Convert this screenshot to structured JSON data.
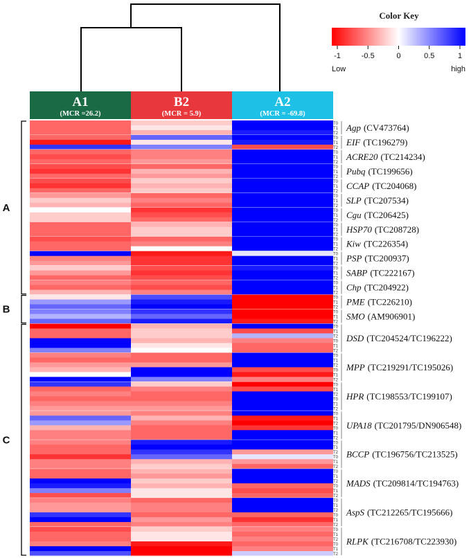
{
  "chart_data": {
    "type": "heatmap",
    "color_key": {
      "title": "Color Key",
      "ticks": [
        "-1",
        "-0.5",
        "0",
        "0.5",
        "1"
      ],
      "tick_values": [
        -1,
        -0.5,
        0,
        0.5,
        1
      ],
      "low_label": "Low",
      "high_label": "high",
      "low_color": "#ff0000",
      "mid_color": "#ffffff",
      "high_color": "#0000ff"
    },
    "columns": [
      {
        "label": "A1",
        "sublabel": "(MCR =26.2)",
        "color": "#1a6b45"
      },
      {
        "label": "B2",
        "sublabel": "(MCR = 5.9)",
        "color": "#e8383b"
      },
      {
        "label": "A2",
        "sublabel": "(MCR = -69.8)",
        "color": "#1ec0e6"
      }
    ],
    "row_labels": [
      "T0",
      "T1",
      "T2"
    ],
    "groups": [
      {
        "label": "A",
        "gene_start": 0,
        "gene_end": 11
      },
      {
        "label": "B",
        "gene_start": 12,
        "gene_end": 13
      },
      {
        "label": "C",
        "gene_start": 14,
        "gene_end": 21
      }
    ],
    "genes": [
      {
        "symbol": "Agp",
        "id": "(CV473764)",
        "rows": 3,
        "values": [
          [
            -0.6,
            -0.2,
            1
          ],
          [
            -0.6,
            -0.1,
            1
          ],
          [
            -0.6,
            -0.3,
            0.9
          ]
        ]
      },
      {
        "symbol": "EIF",
        "id": "(TC196279)",
        "rows": 3,
        "values": [
          [
            -0.6,
            0.6,
            1
          ],
          [
            -0.9,
            -0.1,
            0.9
          ],
          [
            0.8,
            0.5,
            -0.7
          ]
        ]
      },
      {
        "symbol": "ACRE20",
        "id": "(TC214234)",
        "rows": 3,
        "values": [
          [
            -0.6,
            -0.5,
            1
          ],
          [
            -0.7,
            -0.5,
            1
          ],
          [
            -0.6,
            -0.4,
            1
          ]
        ]
      },
      {
        "symbol": "Pubq",
        "id": "(TC199656)",
        "rows": 3,
        "values": [
          [
            -0.7,
            -0.6,
            1
          ],
          [
            -0.8,
            -0.3,
            1
          ],
          [
            -0.6,
            -0.4,
            1
          ]
        ]
      },
      {
        "symbol": "CCAP",
        "id": "(TC204068)",
        "rows": 3,
        "values": [
          [
            -0.7,
            -0.2,
            1
          ],
          [
            -0.8,
            -0.3,
            1
          ],
          [
            -0.6,
            -0.2,
            1
          ]
        ]
      },
      {
        "symbol": "SLP",
        "id": "(TC207534)",
        "rows": 3,
        "values": [
          [
            -0.4,
            -0.6,
            1
          ],
          [
            -0.2,
            -0.5,
            1
          ],
          [
            -0.3,
            -0.6,
            1
          ]
        ]
      },
      {
        "symbol": "Cgu",
        "id": "(TC206425)",
        "rows": 3,
        "values": [
          [
            0,
            -0.8,
            1
          ],
          [
            -0.2,
            -0.7,
            1
          ],
          [
            -0.2,
            -0.6,
            1
          ]
        ]
      },
      {
        "symbol": "HSP70",
        "id": "(TC208728)",
        "rows": 3,
        "values": [
          [
            -0.6,
            -0.3,
            1
          ],
          [
            -0.6,
            -0.2,
            1
          ],
          [
            -0.6,
            -0.2,
            1
          ]
        ]
      },
      {
        "symbol": "Kiw",
        "id": "(TC226354)",
        "rows": 3,
        "values": [
          [
            -0.7,
            -0.6,
            1
          ],
          [
            -0.6,
            -0.5,
            1
          ],
          [
            -0.6,
            0,
            1
          ]
        ]
      },
      {
        "symbol": "PSP",
        "id": "(TC200937)",
        "rows": 3,
        "values": [
          [
            1,
            -0.9,
            0.1
          ],
          [
            -0.5,
            -0.8,
            1
          ],
          [
            -0.4,
            -0.8,
            1
          ]
        ]
      },
      {
        "symbol": "SABP",
        "id": "(TC222167)",
        "rows": 3,
        "values": [
          [
            -0.2,
            -0.7,
            0.9
          ],
          [
            -0.4,
            -0.8,
            1
          ],
          [
            -0.6,
            -0.7,
            1
          ]
        ]
      },
      {
        "symbol": "Chp",
        "id": "(TC204922)",
        "rows": 3,
        "values": [
          [
            -0.5,
            -0.6,
            1
          ],
          [
            -0.6,
            -0.7,
            1
          ],
          [
            -0.3,
            -0.5,
            1
          ]
        ]
      },
      {
        "symbol": "PME",
        "id": "(TC226210)",
        "rows": 3,
        "values": [
          [
            -0.1,
            0.7,
            -1
          ],
          [
            0.4,
            0.9,
            -1
          ],
          [
            0.6,
            1,
            -1
          ]
        ]
      },
      {
        "symbol": "SMO",
        "id": "(AM906901)",
        "rows": 3,
        "values": [
          [
            0.5,
            0.8,
            -1
          ],
          [
            0.3,
            0.6,
            -1
          ],
          [
            0.6,
            0.9,
            -0.9
          ]
        ]
      },
      {
        "symbol": "DSD",
        "id": "(TC204524/TC196222)",
        "rows": 6,
        "values": [
          [
            -1,
            -0.3,
            1
          ],
          [
            -0.6,
            -0.2,
            -0.7
          ],
          [
            -0.6,
            -0.2,
            0.3
          ],
          [
            1,
            -0.3,
            -0.5
          ],
          [
            1,
            -0.1,
            -0.6
          ],
          [
            0.5,
            0,
            -0.6
          ]
        ]
      },
      {
        "symbol": "MPP",
        "id": "(TC219291/TC195026)",
        "rows": 6,
        "values": [
          [
            -0.5,
            -0.6,
            1
          ],
          [
            -0.6,
            -0.6,
            1
          ],
          [
            -0.4,
            -0.4,
            1
          ],
          [
            -0.3,
            1,
            -0.7
          ],
          [
            0,
            1,
            -0.9
          ],
          [
            1,
            0.5,
            -0.5
          ]
        ]
      },
      {
        "symbol": "HPR",
        "id": "(TC198553/TC199107)",
        "rows": 6,
        "values": [
          [
            0.8,
            -0.2,
            -1
          ],
          [
            -0.6,
            -0.5,
            -0.7
          ],
          [
            -0.5,
            -0.6,
            1
          ],
          [
            -0.6,
            -0.6,
            1
          ],
          [
            -0.5,
            -0.5,
            1
          ],
          [
            -0.4,
            -0.4,
            1
          ]
        ]
      },
      {
        "symbol": "UPA18",
        "id": "(TC201795/DN906548)",
        "rows": 6,
        "values": [
          [
            -0.4,
            -0.5,
            1
          ],
          [
            0.6,
            -0.3,
            -0.9
          ],
          [
            0.4,
            -0.5,
            -1
          ],
          [
            -0.3,
            -0.6,
            -0.8
          ],
          [
            -0.5,
            -0.6,
            1
          ],
          [
            -0.5,
            -0.6,
            1
          ]
        ]
      },
      {
        "symbol": "BCCP",
        "id": "(TC196756/TC213525)",
        "rows": 6,
        "values": [
          [
            -0.5,
            0.9,
            1
          ],
          [
            -0.6,
            1,
            1
          ],
          [
            -0.6,
            0.8,
            -0.4
          ],
          [
            -0.8,
            0.6,
            0.1
          ],
          [
            -0.5,
            -0.3,
            -0.4
          ],
          [
            -0.5,
            -0.2,
            -0.6
          ]
        ]
      },
      {
        "symbol": "MADS",
        "id": "(TC209814/TC194763)",
        "rows": 6,
        "values": [
          [
            -0.6,
            -0.3,
            1
          ],
          [
            -0.6,
            -0.4,
            1
          ],
          [
            1,
            -0.2,
            1
          ],
          [
            0.9,
            -0.3,
            -0.6
          ],
          [
            0.5,
            -0.1,
            -0.7
          ],
          [
            -0.7,
            -0.1,
            -0.6
          ]
        ]
      },
      {
        "symbol": "AspS",
        "id": "(TC212265/TC195666)",
        "rows": 6,
        "values": [
          [
            -0.5,
            -0.6,
            1
          ],
          [
            -0.4,
            -0.5,
            1
          ],
          [
            -0.4,
            -0.5,
            1
          ],
          [
            0.8,
            -0.6,
            -0.6
          ],
          [
            1,
            -0.4,
            -0.8
          ],
          [
            -0.6,
            -0.5,
            -0.6
          ]
        ]
      },
      {
        "symbol": "RLPK",
        "id": "(TC216708/TC223930)",
        "rows": 6,
        "values": [
          [
            -0.7,
            -0.2,
            -0.5
          ],
          [
            -0.6,
            -0.1,
            -0.6
          ],
          [
            -0.6,
            -0.1,
            -0.5
          ],
          [
            -0.5,
            -0.9,
            -0.6
          ],
          [
            1,
            -1,
            -0.5
          ],
          [
            0.7,
            -1,
            0.2
          ]
        ]
      }
    ]
  }
}
